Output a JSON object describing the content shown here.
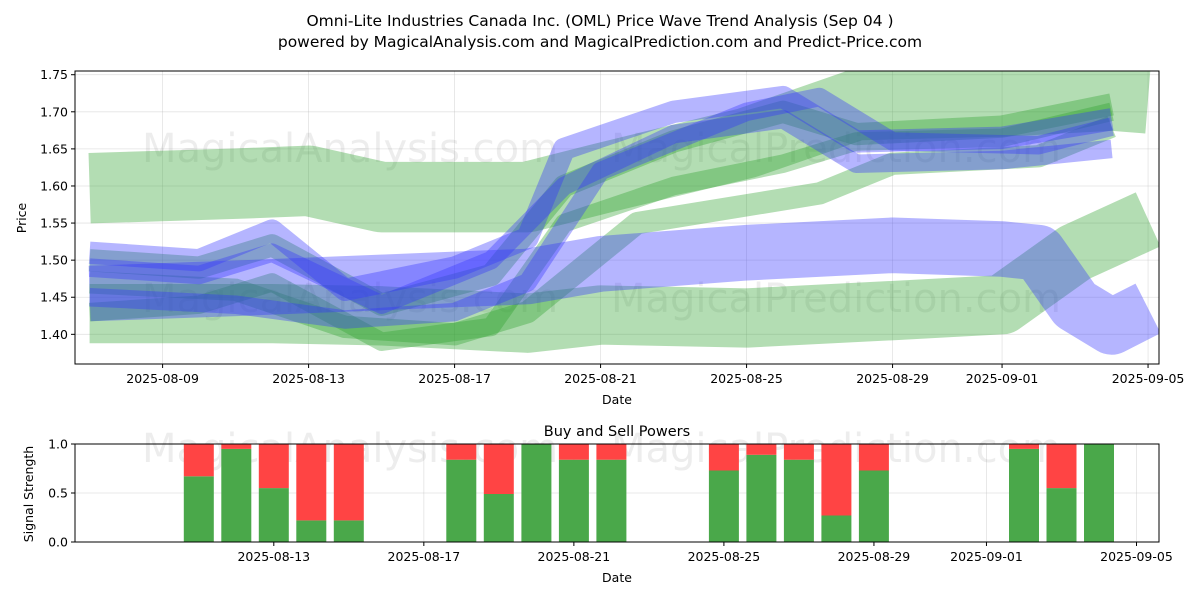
{
  "chart_data": [
    {
      "type": "area",
      "title": "Omni-Lite Industries Canada Inc. (OML) Price Wave Trend Analysis (Sep 04 )",
      "subtitle": "powered by MagicalAnalysis.com and MagicalPrediction.com and Predict-Price.com",
      "xlabel": "Date",
      "ylabel": "Price",
      "xlim": [
        "2025-08-06.6",
        "2025-09-05.3"
      ],
      "ylim": [
        1.36,
        1.755
      ],
      "xticks": [
        "2025-08-09",
        "2025-08-13",
        "2025-08-17",
        "2025-08-21",
        "2025-08-25",
        "2025-08-29",
        "2025-09-01",
        "2025-09-05"
      ],
      "yticks": [
        "1.40",
        "1.45",
        "1.50",
        "1.55",
        "1.60",
        "1.65",
        "1.70",
        "1.75"
      ],
      "grid": true,
      "watermarks": [
        "MagicalAnalysis.com",
        "MagicalPrediction.com",
        "MagicalAnalysis.com",
        "MagicalPrediction.com"
      ],
      "series": [
        {
          "name": "green-upper-band",
          "color": "#2ca02c",
          "x": [
            "2025-08-07",
            "2025-08-11",
            "2025-08-13",
            "2025-08-15",
            "2025-08-19",
            "2025-08-21",
            "2025-08-25",
            "2025-08-28",
            "2025-09-01",
            "2025-09-04",
            "2025-09-05"
          ],
          "values": [
            1.597,
            1.603,
            1.607,
            1.585,
            1.585,
            1.61,
            1.658,
            1.709,
            1.714,
            1.722,
            1.718
          ],
          "width": 0.095
        },
        {
          "name": "green-lower-band",
          "color": "#2ca02c",
          "x": [
            "2025-08-07",
            "2025-08-12",
            "2025-08-15",
            "2025-08-19",
            "2025-08-21",
            "2025-08-25",
            "2025-08-29",
            "2025-09-01",
            "2025-09-03",
            "2025-09-05"
          ],
          "values": [
            1.428,
            1.428,
            1.425,
            1.415,
            1.426,
            1.422,
            1.432,
            1.44,
            1.51,
            1.555
          ],
          "width": 0.08
        },
        {
          "name": "green-wave-1",
          "color": "#2ca02c",
          "x": [
            "2025-08-07",
            "2025-08-10",
            "2025-08-12",
            "2025-08-15",
            "2025-08-18",
            "2025-08-20",
            "2025-08-23",
            "2025-08-26",
            "2025-08-28",
            "2025-09-01",
            "2025-09-04"
          ],
          "values": [
            1.5,
            1.49,
            1.52,
            1.44,
            1.48,
            1.6,
            1.66,
            1.7,
            1.67,
            1.68,
            1.71
          ],
          "width": 0.03
        },
        {
          "name": "green-wave-2",
          "color": "#2ca02c",
          "x": [
            "2025-08-07",
            "2025-08-10",
            "2025-08-12",
            "2025-08-15",
            "2025-08-18",
            "2025-08-20",
            "2025-08-23",
            "2025-08-26",
            "2025-08-28",
            "2025-09-01",
            "2025-09-04"
          ],
          "values": [
            1.43,
            1.44,
            1.47,
            1.39,
            1.41,
            1.55,
            1.6,
            1.63,
            1.66,
            1.665,
            1.7
          ],
          "width": 0.025
        },
        {
          "name": "green-wave-3",
          "color": "#2ca02c",
          "x": [
            "2025-08-07",
            "2025-08-11",
            "2025-08-14",
            "2025-08-17",
            "2025-08-19",
            "2025-08-22",
            "2025-08-27",
            "2025-08-29",
            "2025-09-02",
            "2025-09-04"
          ],
          "values": [
            1.47,
            1.46,
            1.41,
            1.4,
            1.43,
            1.55,
            1.59,
            1.63,
            1.64,
            1.68
          ],
          "width": 0.03
        },
        {
          "name": "blue-main-band",
          "color": "#3333ff",
          "x": [
            "2025-08-07",
            "2025-08-11",
            "2025-08-15",
            "2025-08-19",
            "2025-08-21",
            "2025-08-25",
            "2025-08-29",
            "2025-09-01",
            "2025-09-02",
            "2025-09-03",
            "2025-09-04",
            "2025-09-05"
          ],
          "values": [
            1.455,
            1.462,
            1.47,
            1.478,
            1.495,
            1.51,
            1.52,
            1.515,
            1.51,
            1.44,
            1.41,
            1.435
          ],
          "width": 0.075
        },
        {
          "name": "blue-wave-1",
          "color": "#3333ff",
          "x": [
            "2025-08-07",
            "2025-08-10",
            "2025-08-12",
            "2025-08-14",
            "2025-08-17",
            "2025-08-19",
            "2025-08-20",
            "2025-08-23",
            "2025-08-26",
            "2025-08-28",
            "2025-09-01",
            "2025-09-04"
          ],
          "values": [
            1.51,
            1.5,
            1.54,
            1.46,
            1.49,
            1.53,
            1.65,
            1.7,
            1.72,
            1.66,
            1.665,
            1.69
          ],
          "width": 0.03
        },
        {
          "name": "blue-wave-2",
          "color": "#3333ff",
          "x": [
            "2025-08-07",
            "2025-08-10",
            "2025-08-12",
            "2025-08-15",
            "2025-08-18",
            "2025-08-20",
            "2025-08-23",
            "2025-08-26",
            "2025-08-28",
            "2025-09-01",
            "2025-09-04"
          ],
          "values": [
            1.49,
            1.48,
            1.51,
            1.44,
            1.5,
            1.6,
            1.67,
            1.69,
            1.63,
            1.635,
            1.65
          ],
          "width": 0.025
        },
        {
          "name": "blue-wave-3",
          "color": "#3333ff",
          "x": [
            "2025-08-07",
            "2025-08-11",
            "2025-08-14",
            "2025-08-17",
            "2025-08-19",
            "2025-08-21",
            "2025-08-25",
            "2025-08-27",
            "2025-08-29",
            "2025-09-02",
            "2025-09-04"
          ],
          "values": [
            1.45,
            1.44,
            1.42,
            1.43,
            1.47,
            1.62,
            1.7,
            1.72,
            1.66,
            1.655,
            1.68
          ],
          "width": 0.025
        }
      ]
    },
    {
      "type": "bar",
      "title": "Buy and Sell Powers",
      "xlabel": "Date",
      "ylabel": "Signal Strength",
      "ylim": [
        0,
        1.0
      ],
      "yticks": [
        "0.0",
        "0.5",
        "1.0"
      ],
      "xticks": [
        "2025-08-13",
        "2025-08-17",
        "2025-08-21",
        "2025-08-25",
        "2025-08-29",
        "2025-09-01",
        "2025-09-05"
      ],
      "buy_color": "#4aa84a",
      "sell_color": "#ff4444",
      "categories": [
        "2025-08-11",
        "2025-08-12",
        "2025-08-13",
        "2025-08-14",
        "2025-08-15",
        "2025-08-18",
        "2025-08-19",
        "2025-08-20",
        "2025-08-21",
        "2025-08-22",
        "2025-08-25",
        "2025-08-26",
        "2025-08-27",
        "2025-08-28",
        "2025-08-29",
        "2025-09-02",
        "2025-09-03",
        "2025-09-04"
      ],
      "series": [
        {
          "name": "Buy",
          "values": [
            0.67,
            0.95,
            0.55,
            0.22,
            0.22,
            0.84,
            0.49,
            1.0,
            0.84,
            0.84,
            0.73,
            0.89,
            0.84,
            0.27,
            0.73,
            0.95,
            0.55,
            1.0
          ]
        },
        {
          "name": "Sell",
          "values": [
            0.33,
            0.05,
            0.45,
            0.78,
            0.78,
            0.16,
            0.51,
            0.0,
            0.16,
            0.16,
            0.27,
            0.11,
            0.16,
            0.73,
            0.27,
            0.05,
            0.45,
            0.0
          ]
        }
      ]
    }
  ]
}
